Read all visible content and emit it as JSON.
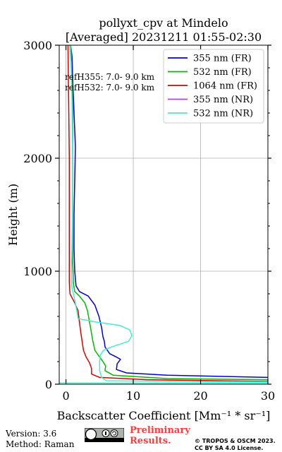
{
  "chart_data": {
    "type": "line",
    "title": "pollyxt_cpv at Mindelo",
    "subtitle": "[Averaged] 20231211 01:55-02:30",
    "xlabel": "Backscatter Coefficient [Mm⁻¹ * sr⁻¹]",
    "ylabel": "Height (m)",
    "xlim": [
      -1,
      30
    ],
    "ylim": [
      0,
      3000
    ],
    "x_ticks": [
      0,
      10,
      20,
      30
    ],
    "y_ticks": [
      0,
      1000,
      2000,
      3000
    ],
    "grid": true,
    "legend_position": "top-right",
    "annotations": [
      "refH355:  7.0- 9.0 km",
      "refH532:  7.0- 9.0 km"
    ],
    "series": [
      {
        "name": "355 nm (FR)",
        "color": "#0000dd",
        "points": [
          [
            30,
            60
          ],
          [
            15,
            80
          ],
          [
            9,
            100
          ],
          [
            7.5,
            130
          ],
          [
            7.6,
            180
          ],
          [
            8.1,
            220
          ],
          [
            7.5,
            240
          ],
          [
            6.5,
            270
          ],
          [
            5.8,
            330
          ],
          [
            5.7,
            380
          ],
          [
            5.5,
            420
          ],
          [
            5.3,
            500
          ],
          [
            4.9,
            600
          ],
          [
            4.3,
            700
          ],
          [
            3.3,
            780
          ],
          [
            2.0,
            820
          ],
          [
            1.5,
            870
          ],
          [
            1.3,
            1000
          ],
          [
            1.2,
            1200
          ],
          [
            1.2,
            1500
          ],
          [
            1.3,
            1800
          ],
          [
            1.4,
            2100
          ],
          [
            1.2,
            2400
          ],
          [
            1.0,
            2700
          ],
          [
            0.9,
            2900
          ],
          [
            0.7,
            3000
          ]
        ]
      },
      {
        "name": "532 nm (FR)",
        "color": "#00bb00",
        "points": [
          [
            30,
            40
          ],
          [
            15,
            50
          ],
          [
            7,
            80
          ],
          [
            5.8,
            120
          ],
          [
            5.9,
            160
          ],
          [
            5.5,
            200
          ],
          [
            5.0,
            240
          ],
          [
            4.3,
            300
          ],
          [
            4.0,
            380
          ],
          [
            3.8,
            450
          ],
          [
            3.5,
            550
          ],
          [
            3.2,
            650
          ],
          [
            2.8,
            720
          ],
          [
            2.0,
            780
          ],
          [
            1.3,
            820
          ],
          [
            1.1,
            900
          ],
          [
            1.0,
            1100
          ],
          [
            1.0,
            1500
          ],
          [
            1.0,
            2000
          ],
          [
            1.0,
            2500
          ],
          [
            0.8,
            2800
          ],
          [
            0.6,
            3000
          ]
        ]
      },
      {
        "name": "1064 nm (FR)",
        "color": "#dd0000",
        "points": [
          [
            30,
            25
          ],
          [
            12,
            40
          ],
          [
            5,
            60
          ],
          [
            3.8,
            90
          ],
          [
            3.8,
            140
          ],
          [
            3.5,
            190
          ],
          [
            3.0,
            240
          ],
          [
            2.6,
            300
          ],
          [
            2.4,
            380
          ],
          [
            2.2,
            460
          ],
          [
            2.0,
            550
          ],
          [
            1.8,
            650
          ],
          [
            1.3,
            720
          ],
          [
            0.6,
            800
          ],
          [
            0.5,
            900
          ],
          [
            0.5,
            1200
          ],
          [
            0.5,
            1600
          ],
          [
            0.5,
            2000
          ],
          [
            0.4,
            2500
          ],
          [
            0.3,
            3000
          ]
        ]
      },
      {
        "name": "355 nm (NR)",
        "color": "#aa44ee",
        "points": []
      },
      {
        "name": "532 nm (NR)",
        "color": "#44eecc",
        "points": [
          [
            -1,
            10
          ],
          [
            30,
            10
          ],
          [
            30,
            20
          ],
          [
            6,
            30
          ],
          [
            5.3,
            60
          ],
          [
            5.0,
            120
          ],
          [
            5.0,
            200
          ],
          [
            5.1,
            260
          ],
          [
            5.6,
            300
          ],
          [
            6.8,
            330
          ],
          [
            8.3,
            360
          ],
          [
            9.3,
            380
          ],
          [
            9.8,
            430
          ],
          [
            9.5,
            480
          ],
          [
            8.0,
            520
          ],
          [
            4.5,
            550
          ],
          [
            1.8,
            580
          ],
          [
            1.6,
            650
          ],
          [
            1.3,
            750
          ],
          [
            0.9,
            850
          ],
          [
            0.8,
            950
          ],
          [
            0.9,
            1200
          ],
          [
            1.0,
            1600
          ],
          [
            1.0,
            2000
          ],
          [
            0.9,
            2500
          ],
          [
            0.7,
            3000
          ]
        ]
      }
    ]
  },
  "footer": {
    "version": "Version: 3.6",
    "method": "Method: Raman",
    "prelim_line1": "Preliminary",
    "prelim_line2": "Results.",
    "copyright_line1": "© TROPOS & OSCM 2023.",
    "copyright_line2": "CC BY SA 4.0 License."
  }
}
